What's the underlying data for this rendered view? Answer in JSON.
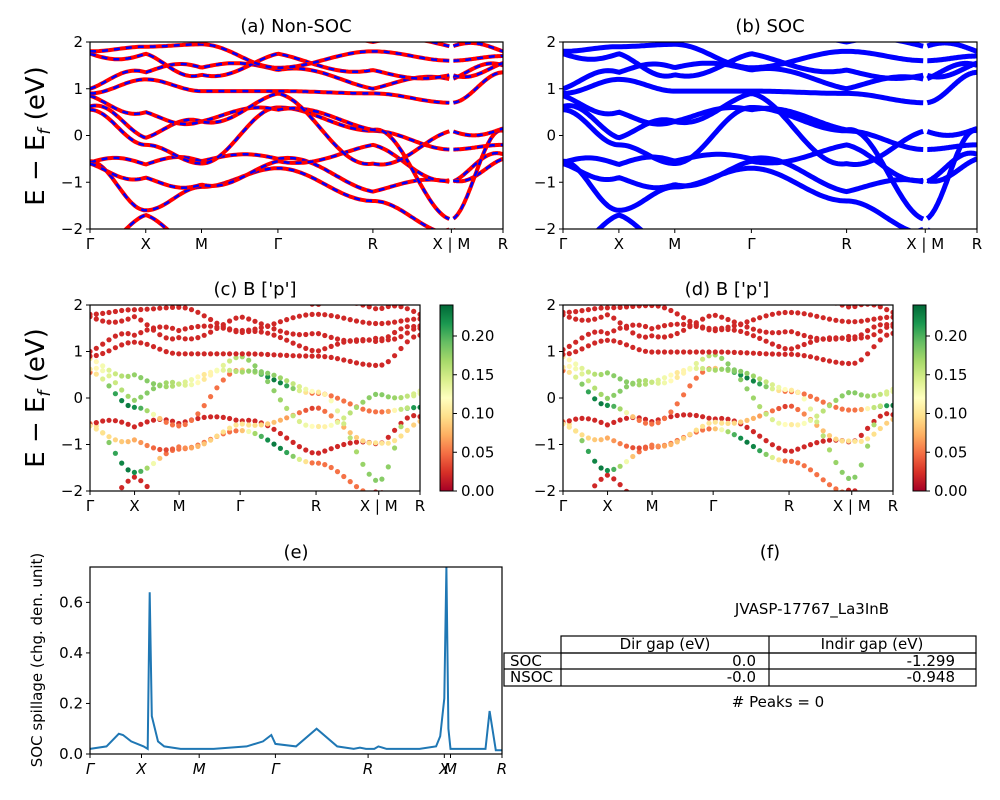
{
  "colors": {
    "nonsoc_solid": "#ff0000",
    "nonsoc_dash": "#0000ff",
    "soc": "#0000ff",
    "spillage": "#1f77b4",
    "colormap": "RdYlGn"
  },
  "band_axis": {
    "ylim": [
      -2,
      2
    ],
    "yticks": [
      "−2",
      "−1",
      "0",
      "1",
      "2"
    ],
    "ylabel": "E − E_f (eV)"
  },
  "kpath": {
    "labels": [
      "Γ",
      "X",
      "M",
      "Γ",
      "R",
      "X | M",
      "R"
    ],
    "pos": [
      0,
      0.135,
      0.27,
      0.455,
      0.685,
      0.875,
      1.0
    ],
    "break": 0.875
  },
  "colorbar": {
    "range": [
      0,
      0.24
    ],
    "ticks": [
      "0.00",
      "0.05",
      "0.10",
      "0.15",
      "0.20"
    ],
    "values": [
      0,
      0.05,
      0.1,
      0.15,
      0.2
    ]
  },
  "panels": {
    "a": {
      "title": "(a) Non-SOC"
    },
    "b": {
      "title": "(b) SOC"
    },
    "c": {
      "title": "(c)  B ['p']"
    },
    "d": {
      "title": "(d) B ['p']"
    },
    "e": {
      "title": "(e)",
      "ylabel": "SOC spillage (chg. den. unit)",
      "yticks": [
        "0.0",
        "0.2",
        "0.4",
        "0.6"
      ],
      "ylim": [
        0,
        0.74
      ],
      "xlabels": [
        "Γ",
        "X",
        "M",
        "Γ",
        "R",
        "X",
        "M",
        "R"
      ],
      "xpos": [
        0,
        0.125,
        0.265,
        0.45,
        0.675,
        0.86,
        0.875,
        1.0
      ]
    },
    "f": {
      "title": "(f)",
      "material": "JVASP-17767_La3InB",
      "peaks": "# Peaks = 0",
      "header": [
        "Dir gap (eV)",
        "Indir gap (eV)"
      ],
      "rows": [
        {
          "label": "SOC",
          "dir": "0.0",
          "indir": "-1.299"
        },
        {
          "label": "NSOC",
          "dir": "-0.0",
          "indir": "-0.948"
        }
      ]
    }
  },
  "chart_data": [
    {
      "type": "line",
      "title": "(a) Non-SOC",
      "ylabel": "E − E_f (eV)",
      "ylim": [
        -2,
        2
      ],
      "xticks": [
        "Γ",
        "X",
        "M",
        "Γ",
        "R",
        "X | M",
        "R"
      ],
      "series": [
        {
          "x": [
            0,
            0.135,
            0.27,
            0.455,
            0.685,
            0.875
          ],
          "values": [
            -0.55,
            -0.6,
            -0.55,
            -0.5,
            0.1,
            -0.95
          ]
        },
        {
          "x": [
            0,
            0.135,
            0.27,
            0.455,
            0.685,
            0.875
          ],
          "values": [
            0.6,
            -0.1,
            0.3,
            0.55,
            -0.6,
            0.1
          ]
        },
        {
          "x": [
            0,
            0.135,
            0.27,
            0.455,
            0.685,
            0.875
          ],
          "values": [
            0.85,
            1.2,
            0.95,
            0.9,
            1.0,
            0.7
          ]
        }
      ]
    },
    {
      "type": "line",
      "title": "(b) SOC",
      "ylim": [
        -2,
        2
      ],
      "xticks": [
        "Γ",
        "X",
        "M",
        "Γ",
        "R",
        "X | M",
        "R"
      ],
      "series": [
        {
          "x": [
            0,
            0.135,
            0.27,
            0.455,
            0.685,
            0.875
          ],
          "values": [
            -0.55,
            -0.6,
            -0.55,
            -0.45,
            0.15,
            -0.95
          ]
        },
        {
          "x": [
            0,
            0.135,
            0.27,
            0.455,
            0.685,
            0.875
          ],
          "values": [
            0.55,
            -0.1,
            0.3,
            0.6,
            -0.6,
            0.15
          ]
        }
      ]
    },
    {
      "type": "scatter",
      "title": "(c)  B ['p']",
      "ylim": [
        -2,
        2
      ],
      "colorbar": [
        0,
        0.24
      ]
    },
    {
      "type": "scatter",
      "title": "(d) B ['p']",
      "ylim": [
        -2,
        2
      ],
      "colorbar": [
        0,
        0.24
      ]
    },
    {
      "type": "line",
      "title": "(e)",
      "ylabel": "SOC spillage (chg. den. unit)",
      "ylim": [
        0,
        0.74
      ],
      "xticks": [
        "Γ",
        "X",
        "M",
        "Γ",
        "R",
        "X",
        "M",
        "R"
      ],
      "series": [
        {
          "x": [
            0,
            0.04,
            0.07,
            0.08,
            0.1,
            0.13,
            0.14,
            0.145,
            0.15,
            0.165,
            0.18,
            0.22,
            0.3,
            0.38,
            0.42,
            0.44,
            0.45,
            0.5,
            0.55,
            0.6,
            0.64,
            0.655,
            0.67,
            0.69,
            0.7,
            0.72,
            0.75,
            0.8,
            0.84,
            0.85,
            0.86,
            0.865,
            0.87,
            0.875,
            0.9,
            0.95,
            0.96,
            0.97,
            0.985,
            1.0
          ],
          "values": [
            0.02,
            0.03,
            0.08,
            0.075,
            0.05,
            0.03,
            0.02,
            0.64,
            0.15,
            0.05,
            0.03,
            0.02,
            0.02,
            0.03,
            0.05,
            0.075,
            0.04,
            0.03,
            0.1,
            0.03,
            0.02,
            0.025,
            0.02,
            0.02,
            0.03,
            0.02,
            0.02,
            0.02,
            0.03,
            0.07,
            0.22,
            0.74,
            0.1,
            0.02,
            0.02,
            0.02,
            0.02,
            0.17,
            0.015,
            0.015
          ]
        }
      ]
    },
    {
      "type": "table",
      "title": "(f)",
      "columns": [
        "",
        "Dir gap (eV)",
        "Indir gap (eV)"
      ],
      "rows": [
        [
          "SOC",
          "0.0",
          "-1.299"
        ],
        [
          "NSOC",
          "-0.0",
          "-0.948"
        ]
      ]
    }
  ]
}
